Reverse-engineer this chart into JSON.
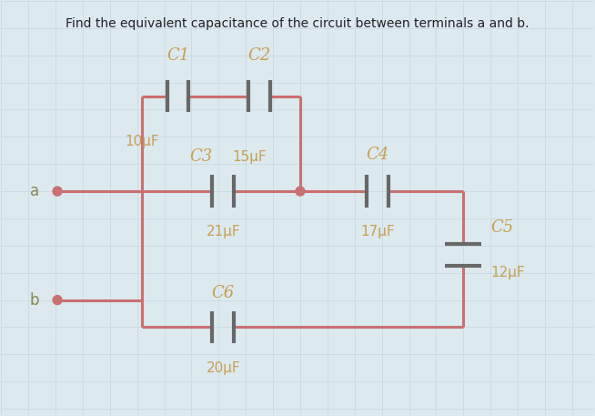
{
  "title": "Find the equivalent capacitance of the circuit between terminals a and b.",
  "background_color": "#dce9ef",
  "grid_color": "#c5d8e0",
  "wire_color": "#c97070",
  "cap_color": "#686868",
  "dot_color": "#c97070",
  "text_color": "#888855",
  "title_color": "#222222",
  "label_color": "#c8a050",
  "C1_label": "C1",
  "C1_value": "10μF",
  "C2_label": "C2",
  "C2_value": "15μF",
  "C3_label": "C3",
  "C3_value": "21μF",
  "C4_label": "C4",
  "C4_value": "17μF",
  "C5_label": "C5",
  "C5_value": "12μF",
  "C6_label": "C6",
  "C6_value": "20μF"
}
